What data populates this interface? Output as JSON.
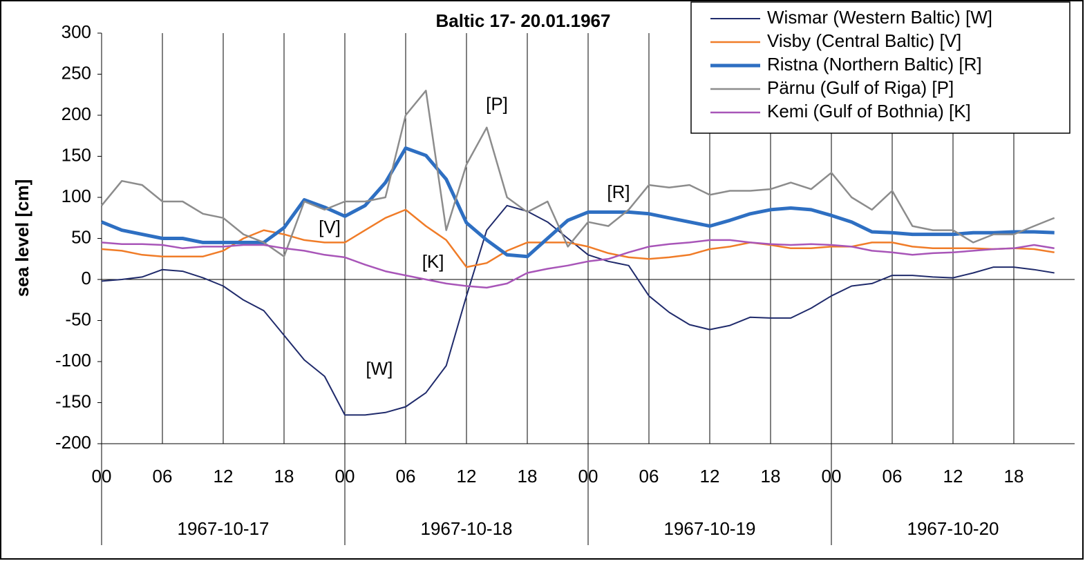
{
  "chart_data": {
    "type": "line",
    "title": "Baltic 17- 20.01.1967",
    "y_label": "sea level [cm]",
    "x": [
      0,
      2,
      4,
      6,
      8,
      10,
      12,
      14,
      16,
      18,
      20,
      22,
      24,
      26,
      28,
      30,
      32,
      34,
      36,
      38,
      40,
      42,
      44,
      46,
      48,
      50,
      52,
      54,
      56,
      58,
      60,
      62,
      64,
      66,
      68,
      70,
      72,
      74,
      76,
      78,
      80,
      82,
      84,
      86,
      88,
      90,
      92,
      94
    ],
    "xlim": [
      0,
      96
    ],
    "xticks": [
      {
        "value": 0,
        "label": "00"
      },
      {
        "value": 6,
        "label": "06"
      },
      {
        "value": 12,
        "label": "12"
      },
      {
        "value": 18,
        "label": "18"
      },
      {
        "value": 24,
        "label": "00"
      },
      {
        "value": 30,
        "label": "06"
      },
      {
        "value": 36,
        "label": "12"
      },
      {
        "value": 42,
        "label": "18"
      },
      {
        "value": 48,
        "label": "00"
      },
      {
        "value": 54,
        "label": "06"
      },
      {
        "value": 60,
        "label": "12"
      },
      {
        "value": 66,
        "label": "18"
      },
      {
        "value": 72,
        "label": "00"
      },
      {
        "value": 78,
        "label": "06"
      },
      {
        "value": 84,
        "label": "12"
      },
      {
        "value": 90,
        "label": "18"
      }
    ],
    "x_groups": [
      {
        "start": 0,
        "label": "1967-10-17"
      },
      {
        "start": 24,
        "label": "1967-10-18"
      },
      {
        "start": 48,
        "label": "1967-10-19"
      },
      {
        "start": 72,
        "label": "1967-10-20"
      }
    ],
    "ylim": [
      -200,
      300
    ],
    "yticks": [
      -200,
      -150,
      -100,
      -50,
      0,
      50,
      100,
      150,
      200,
      250,
      300
    ],
    "grid": true,
    "legend": "top-right",
    "series": [
      {
        "name": "Wismar (Western Baltic) [W]",
        "color": "#1f2a6b",
        "width": 2,
        "values": [
          -2,
          0,
          3,
          12,
          10,
          2,
          -8,
          -25,
          -38,
          -68,
          -98,
          -118,
          -165,
          -165,
          -162,
          -155,
          -138,
          -105,
          -20,
          60,
          90,
          83,
          70,
          50,
          30,
          22,
          17,
          -20,
          -40,
          -55,
          -61,
          -56,
          -46,
          -47,
          -47,
          -35,
          -20,
          -8,
          -5,
          5,
          5,
          3,
          2,
          8,
          15,
          15,
          12,
          8
        ]
      },
      {
        "name": "Visby (Central Baltic) [V]",
        "color": "#f07c28",
        "width": 2.5,
        "values": [
          37,
          35,
          30,
          28,
          28,
          28,
          35,
          50,
          60,
          55,
          48,
          45,
          45,
          60,
          75,
          85,
          65,
          48,
          15,
          20,
          35,
          45,
          45,
          45,
          40,
          32,
          27,
          25,
          27,
          30,
          37,
          40,
          45,
          42,
          38,
          38,
          40,
          40,
          45,
          45,
          40,
          38,
          38,
          38,
          37,
          38,
          37,
          33
        ]
      },
      {
        "name": "Ristna (Northern Baltic) [R]",
        "color": "#2e6fc2",
        "width": 5,
        "values": [
          70,
          60,
          55,
          50,
          50,
          45,
          45,
          45,
          45,
          63,
          97,
          88,
          77,
          90,
          118,
          160,
          151,
          122,
          69,
          48,
          30,
          28,
          50,
          72,
          82,
          82,
          82,
          80,
          75,
          70,
          65,
          72,
          80,
          85,
          87,
          85,
          78,
          70,
          58,
          57,
          55,
          55,
          55,
          57,
          57,
          58,
          58,
          57
        ]
      },
      {
        "name": "Pärnu (Gulf of Riga) [P]",
        "color": "#8c8c8c",
        "width": 2.5,
        "values": [
          90,
          120,
          115,
          95,
          95,
          80,
          75,
          55,
          45,
          28,
          95,
          85,
          95,
          95,
          100,
          200,
          230,
          60,
          140,
          185,
          100,
          82,
          95,
          40,
          70,
          65,
          85,
          115,
          112,
          115,
          103,
          108,
          108,
          110,
          118,
          110,
          130,
          100,
          85,
          108,
          65,
          60,
          60,
          45,
          55,
          55,
          65,
          75
        ]
      },
      {
        "name": "Kemi (Gulf of Bothnia) [K]",
        "color": "#a855b8",
        "width": 2.5,
        "values": [
          45,
          43,
          43,
          42,
          38,
          40,
          40,
          42,
          42,
          38,
          35,
          30,
          27,
          18,
          10,
          5,
          0,
          -5,
          -8,
          -10,
          -5,
          8,
          13,
          17,
          22,
          25,
          33,
          40,
          43,
          45,
          48,
          48,
          45,
          43,
          42,
          43,
          42,
          40,
          35,
          33,
          30,
          32,
          33,
          35,
          37,
          38,
          42,
          38
        ]
      }
    ],
    "annotations": [
      {
        "text": "[W]",
        "x": 27.4,
        "y": -110
      },
      {
        "text": "[V]",
        "x": 22.5,
        "y": 62
      },
      {
        "text": "[K]",
        "x": 32.7,
        "y": 20
      },
      {
        "text": "[P]",
        "x": 39,
        "y": 212
      },
      {
        "text": "[R]",
        "x": 51,
        "y": 105
      }
    ]
  }
}
